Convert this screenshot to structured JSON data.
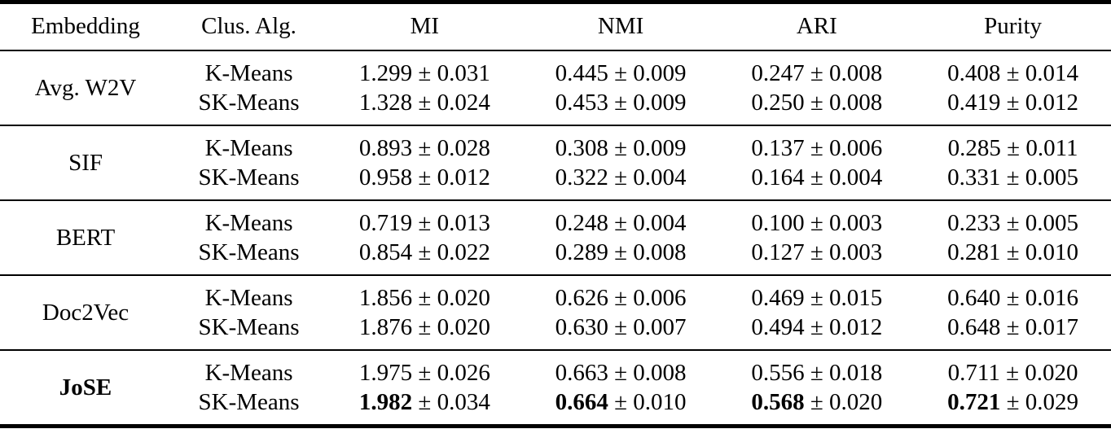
{
  "colors": {
    "text": "#000000",
    "background": "#ffffff",
    "rule": "#000000"
  },
  "table": {
    "columns": [
      {
        "label": "Embedding"
      },
      {
        "label": "Clus. Alg."
      },
      {
        "label": "MI"
      },
      {
        "label": "NMI"
      },
      {
        "label": "ARI"
      },
      {
        "label": "Purity"
      }
    ],
    "groups": [
      {
        "embedding": "Avg. W2V",
        "embedding_bold": false,
        "rows": [
          {
            "alg": "K-Means",
            "cells": [
              {
                "mean": "1.299",
                "std": "± 0.031",
                "bold": false
              },
              {
                "mean": "0.445",
                "std": "± 0.009",
                "bold": false
              },
              {
                "mean": "0.247",
                "std": "± 0.008",
                "bold": false
              },
              {
                "mean": "0.408",
                "std": "± 0.014",
                "bold": false
              }
            ]
          },
          {
            "alg": "SK-Means",
            "cells": [
              {
                "mean": "1.328",
                "std": "± 0.024",
                "bold": false
              },
              {
                "mean": "0.453",
                "std": "± 0.009",
                "bold": false
              },
              {
                "mean": "0.250",
                "std": "± 0.008",
                "bold": false
              },
              {
                "mean": "0.419",
                "std": "± 0.012",
                "bold": false
              }
            ]
          }
        ]
      },
      {
        "embedding": "SIF",
        "embedding_bold": false,
        "rows": [
          {
            "alg": "K-Means",
            "cells": [
              {
                "mean": "0.893",
                "std": "± 0.028",
                "bold": false
              },
              {
                "mean": "0.308",
                "std": "± 0.009",
                "bold": false
              },
              {
                "mean": "0.137",
                "std": "± 0.006",
                "bold": false
              },
              {
                "mean": "0.285",
                "std": "± 0.011",
                "bold": false
              }
            ]
          },
          {
            "alg": "SK-Means",
            "cells": [
              {
                "mean": "0.958",
                "std": "± 0.012",
                "bold": false
              },
              {
                "mean": "0.322",
                "std": "± 0.004",
                "bold": false
              },
              {
                "mean": "0.164",
                "std": "± 0.004",
                "bold": false
              },
              {
                "mean": "0.331",
                "std": "± 0.005",
                "bold": false
              }
            ]
          }
        ]
      },
      {
        "embedding": "BERT",
        "embedding_bold": false,
        "rows": [
          {
            "alg": "K-Means",
            "cells": [
              {
                "mean": "0.719",
                "std": "± 0.013",
                "bold": false
              },
              {
                "mean": "0.248",
                "std": "± 0.004",
                "bold": false
              },
              {
                "mean": "0.100",
                "std": "± 0.003",
                "bold": false
              },
              {
                "mean": "0.233",
                "std": "± 0.005",
                "bold": false
              }
            ]
          },
          {
            "alg": "SK-Means",
            "cells": [
              {
                "mean": "0.854",
                "std": "± 0.022",
                "bold": false
              },
              {
                "mean": "0.289",
                "std": "± 0.008",
                "bold": false
              },
              {
                "mean": "0.127",
                "std": "± 0.003",
                "bold": false
              },
              {
                "mean": "0.281",
                "std": "± 0.010",
                "bold": false
              }
            ]
          }
        ]
      },
      {
        "embedding": "Doc2Vec",
        "embedding_bold": false,
        "rows": [
          {
            "alg": "K-Means",
            "cells": [
              {
                "mean": "1.856",
                "std": "± 0.020",
                "bold": false
              },
              {
                "mean": "0.626",
                "std": "± 0.006",
                "bold": false
              },
              {
                "mean": "0.469",
                "std": "± 0.015",
                "bold": false
              },
              {
                "mean": "0.640",
                "std": "± 0.016",
                "bold": false
              }
            ]
          },
          {
            "alg": "SK-Means",
            "cells": [
              {
                "mean": "1.876",
                "std": "± 0.020",
                "bold": false
              },
              {
                "mean": "0.630",
                "std": "± 0.007",
                "bold": false
              },
              {
                "mean": "0.494",
                "std": "± 0.012",
                "bold": false
              },
              {
                "mean": "0.648",
                "std": "± 0.017",
                "bold": false
              }
            ]
          }
        ]
      },
      {
        "embedding": "JoSE",
        "embedding_bold": true,
        "rows": [
          {
            "alg": "K-Means",
            "cells": [
              {
                "mean": "1.975",
                "std": "± 0.026",
                "bold": false
              },
              {
                "mean": "0.663",
                "std": "± 0.008",
                "bold": false
              },
              {
                "mean": "0.556",
                "std": "± 0.018",
                "bold": false
              },
              {
                "mean": "0.711",
                "std": "± 0.020",
                "bold": false
              }
            ]
          },
          {
            "alg": "SK-Means",
            "cells": [
              {
                "mean": "1.982",
                "std": "± 0.034",
                "bold": true
              },
              {
                "mean": "0.664",
                "std": "± 0.010",
                "bold": true
              },
              {
                "mean": "0.568",
                "std": "± 0.020",
                "bold": true
              },
              {
                "mean": "0.721",
                "std": "± 0.029",
                "bold": true
              }
            ]
          }
        ]
      }
    ]
  }
}
